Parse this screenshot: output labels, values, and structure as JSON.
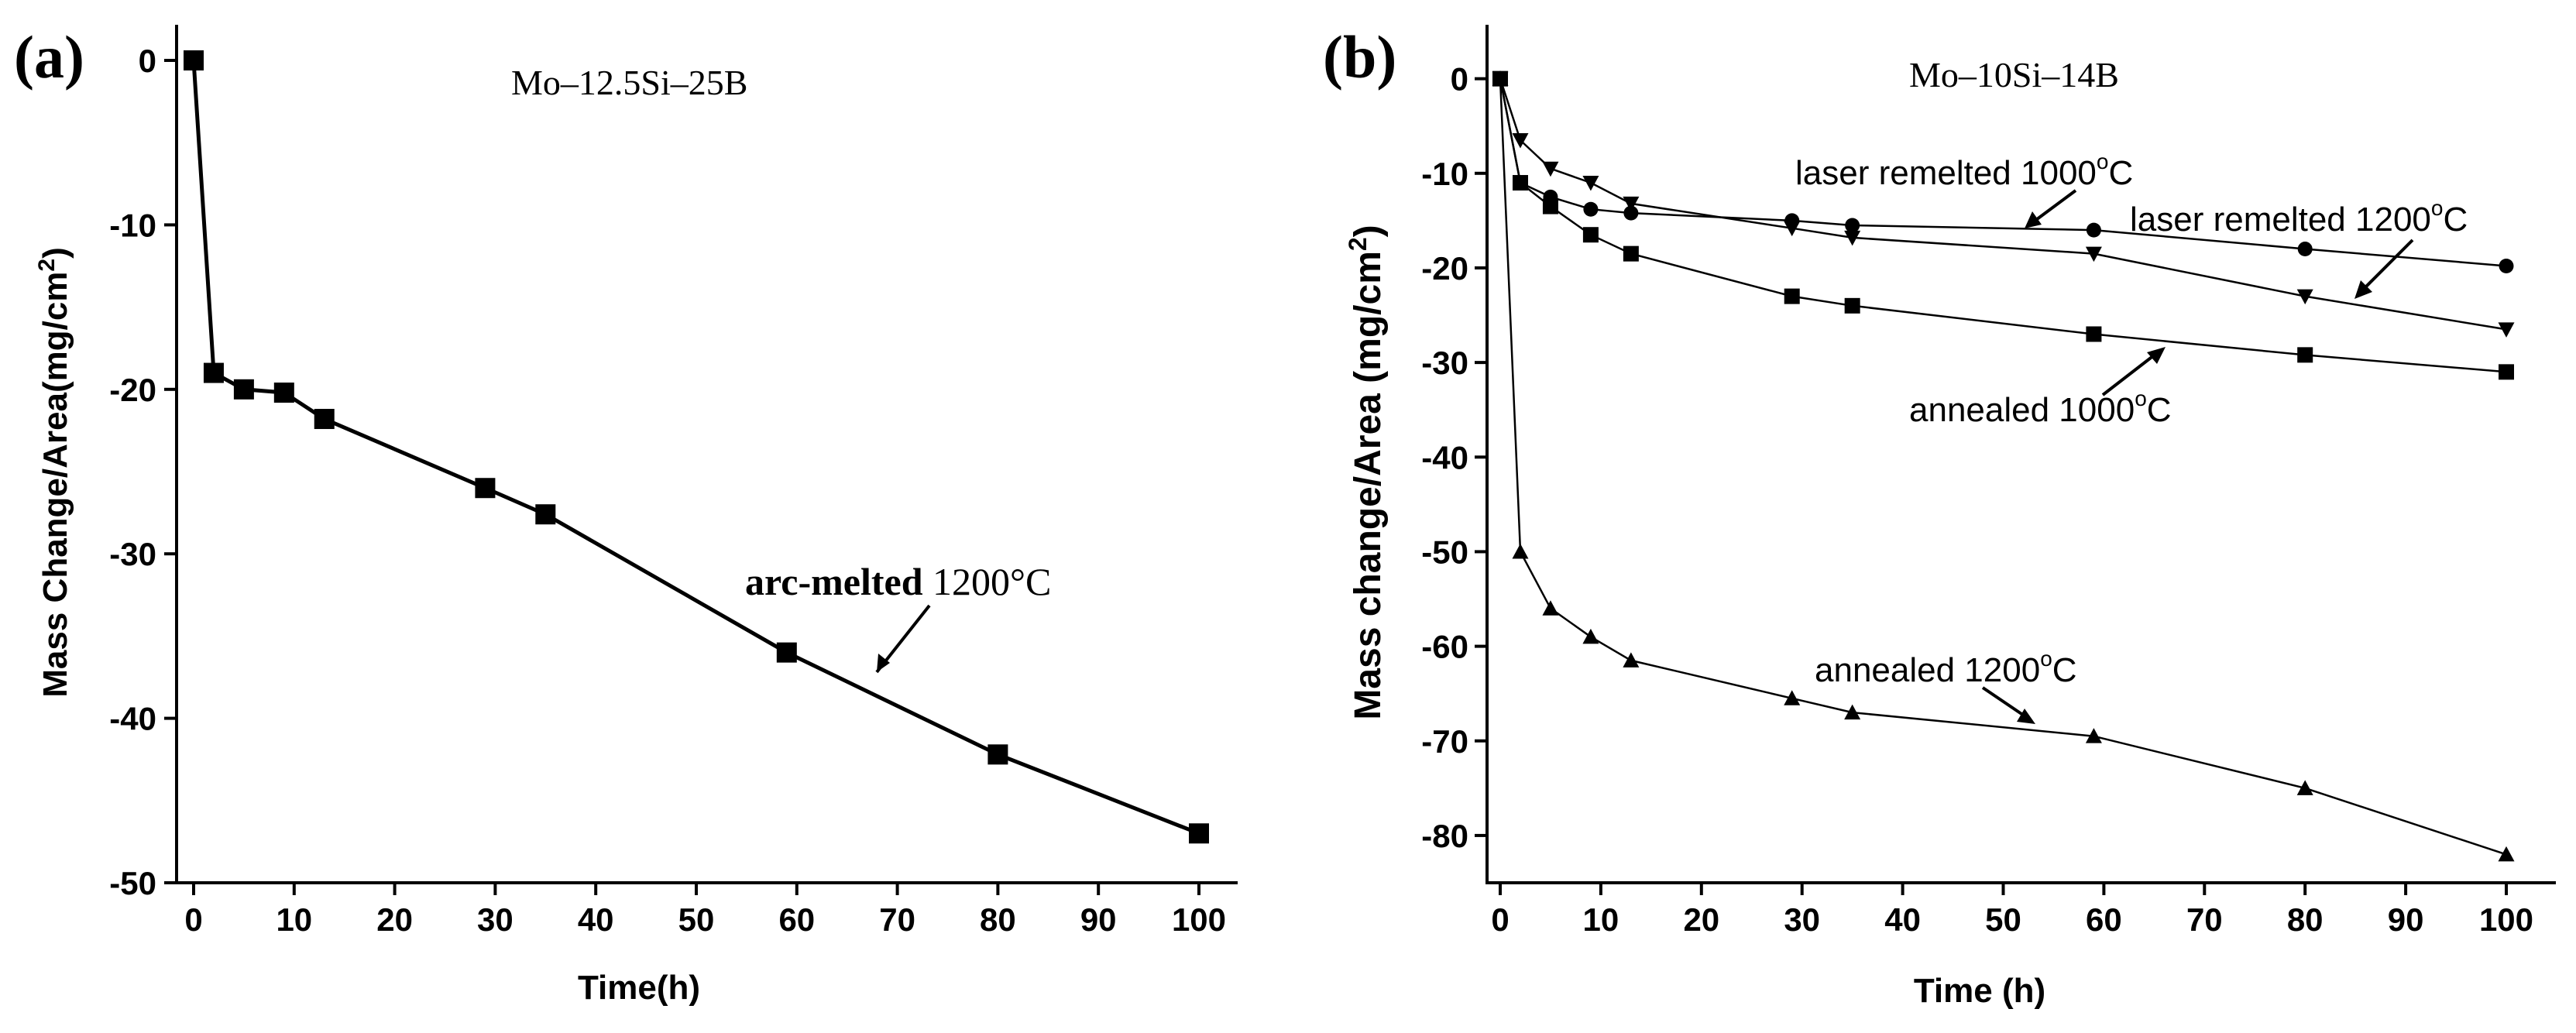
{
  "colors": {
    "ink": "#000000",
    "background": "#ffffff"
  },
  "chart_data": [
    {
      "panel_label": "(a)",
      "type": "line",
      "title": "Mo–12.5Si–25B",
      "xlabel": "Time(h)",
      "ylabel": "Mass Change/Area(mg/cm²)",
      "ylabel_main": "Mass Change/Area(mg/cm",
      "ylabel_sup": "2",
      "ylabel_end": ")",
      "xlim": [
        0,
        100
      ],
      "ylim": [
        -50,
        0
      ],
      "xticks": [
        0,
        10,
        20,
        30,
        40,
        50,
        60,
        70,
        80,
        90,
        100
      ],
      "yticks": [
        0,
        -10,
        -20,
        -30,
        -40,
        -50
      ],
      "grid": false,
      "series": [
        {
          "name": "arc-melted 1200°C",
          "marker": "square",
          "x": [
            0,
            2,
            5,
            9,
            13,
            29,
            35,
            59,
            80,
            100
          ],
          "y": [
            0,
            -19,
            -20,
            -20.2,
            -21.8,
            -26,
            -27.6,
            -36,
            -42.2,
            -47
          ]
        }
      ],
      "annotations": [
        {
          "bold": "arc-melted",
          "text": " 1200°C"
        }
      ]
    },
    {
      "panel_label": "(b)",
      "type": "line",
      "title": "Mo–10Si–14B",
      "xlabel": "Time (h)",
      "ylabel": "Mass change/Area (mg/cm²)",
      "ylabel_main": "Mass change/Area (mg/cm",
      "ylabel_sup": "2",
      "ylabel_end": ")",
      "xlim": [
        0,
        100
      ],
      "ylim": [
        -85,
        3
      ],
      "xticks": [
        0,
        10,
        20,
        30,
        40,
        50,
        60,
        70,
        80,
        90,
        100
      ],
      "yticks": [
        0,
        -10,
        -20,
        -30,
        -40,
        -50,
        -60,
        -70,
        -80
      ],
      "grid": false,
      "series": [
        {
          "name": "laser remelted 1000°C",
          "marker": "circle",
          "x": [
            0,
            2,
            5,
            9,
            13,
            29,
            35,
            59,
            80,
            100
          ],
          "y": [
            0,
            -11,
            -12.5,
            -13.8,
            -14.2,
            -15,
            -15.5,
            -16,
            -18,
            -19.8
          ]
        },
        {
          "name": "laser remelted 1200°C",
          "marker": "triangle-down",
          "x": [
            0,
            2,
            5,
            9,
            13,
            29,
            35,
            59,
            80,
            100
          ],
          "y": [
            0,
            -6.5,
            -9.5,
            -11,
            -13.2,
            -15.8,
            -16.8,
            -18.5,
            -23,
            -26.5
          ]
        },
        {
          "name": "annealed 1000°C",
          "marker": "square",
          "x": [
            0,
            2,
            5,
            9,
            13,
            29,
            35,
            59,
            80,
            100
          ],
          "y": [
            0,
            -11,
            -13.5,
            -16.5,
            -18.5,
            -23,
            -24,
            -27,
            -29.2,
            -31
          ]
        },
        {
          "name": "annealed 1200°C",
          "marker": "triangle-up",
          "x": [
            0,
            2,
            5,
            9,
            13,
            29,
            35,
            59,
            80,
            100
          ],
          "y": [
            0,
            -50,
            -56,
            -59,
            -61.5,
            -65.5,
            -67,
            -69.5,
            -75,
            -82
          ]
        }
      ],
      "annotations": [
        {
          "text": "laser remelted 1000",
          "sup": "o",
          "end": "C"
        },
        {
          "text": "laser remelted 1200",
          "sup": "o",
          "end": "C"
        },
        {
          "text": "annealed 1000",
          "sup": "o",
          "end": "C"
        },
        {
          "text": "annealed 1200",
          "sup": "o",
          "end": "C"
        }
      ]
    }
  ]
}
